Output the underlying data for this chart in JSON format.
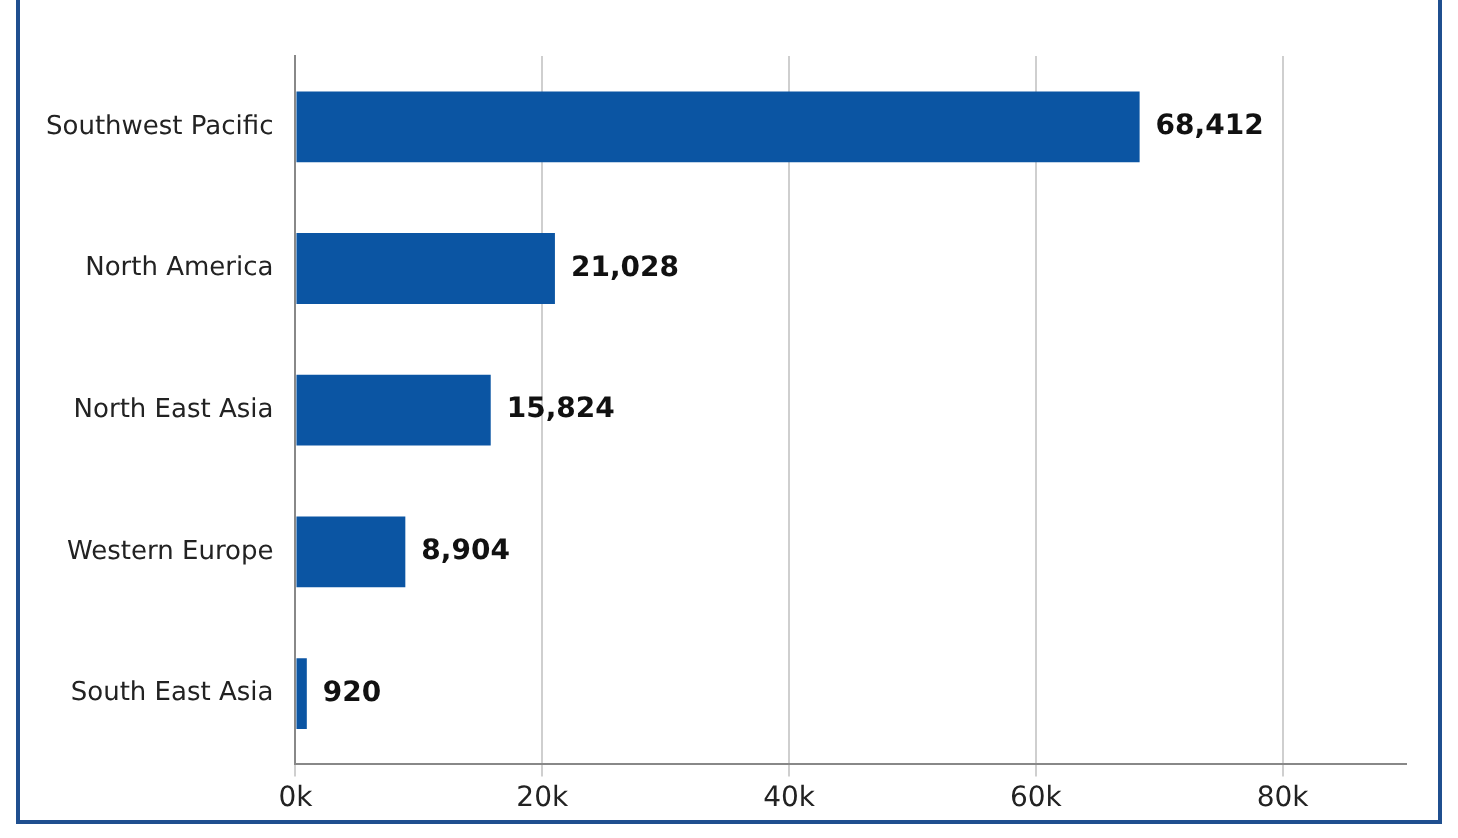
{
  "chart_data": {
    "type": "bar",
    "orientation": "horizontal",
    "categories": [
      "Southwest Pacific",
      "North America",
      "North East Asia",
      "Western Europe",
      "South East Asia"
    ],
    "values": [
      68412,
      21028,
      15824,
      8904,
      920
    ],
    "value_labels": [
      "68,412",
      "21,028",
      "15,824",
      "8,904",
      "920"
    ],
    "color": "#0b55a3",
    "xlim": [
      0,
      90000
    ],
    "xticks": [
      {
        "value": 0,
        "label": "0k"
      },
      {
        "value": 20000,
        "label": "20k"
      },
      {
        "value": 40000,
        "label": "40k"
      },
      {
        "value": 60000,
        "label": "60k"
      },
      {
        "value": 80000,
        "label": "80k"
      }
    ],
    "grid": "x",
    "legend": false
  }
}
